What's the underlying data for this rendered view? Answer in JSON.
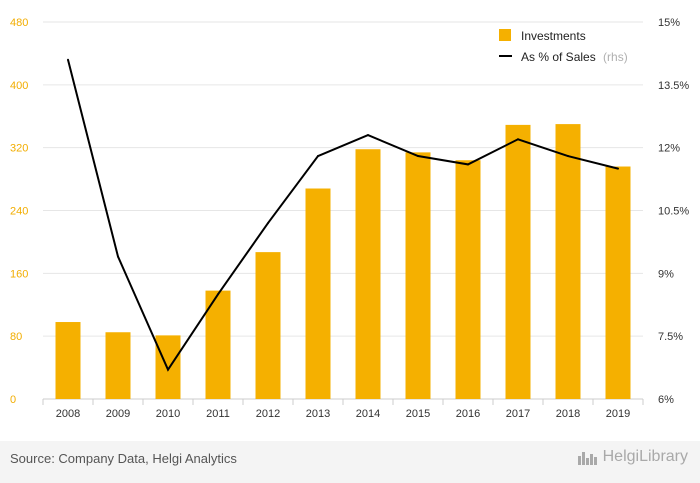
{
  "chart_data": {
    "type": "bar",
    "categories": [
      "2008",
      "2009",
      "2010",
      "2011",
      "2012",
      "2013",
      "2014",
      "2015",
      "2016",
      "2017",
      "2018",
      "2019"
    ],
    "series": [
      {
        "name": "Investments",
        "type": "bar",
        "axis": "left",
        "color": "#f5b000",
        "values": [
          98,
          85,
          81,
          138,
          187,
          268,
          318,
          314,
          304,
          349,
          350,
          296
        ]
      },
      {
        "name": "As % of Sales",
        "name_suffix": "(rhs)",
        "type": "line",
        "axis": "right",
        "color": "#000000",
        "values": [
          14.1,
          9.4,
          6.7,
          8.5,
          10.2,
          11.8,
          12.3,
          11.8,
          11.6,
          12.2,
          11.8,
          11.5
        ]
      }
    ],
    "left_axis": {
      "min": 0,
      "max": 480,
      "ticks": [
        "0",
        "80",
        "160",
        "240",
        "320",
        "400",
        "480"
      ],
      "tick_values": [
        0,
        80,
        160,
        240,
        320,
        400,
        480
      ]
    },
    "right_axis": {
      "min": 6,
      "max": 15,
      "ticks": [
        "6%",
        "7.5%",
        "9%",
        "10.5%",
        "12%",
        "13.5%",
        "15%"
      ],
      "tick_values": [
        6,
        7.5,
        9,
        10.5,
        12,
        13.5,
        15
      ]
    },
    "grid": true,
    "legend": "top-right"
  },
  "footer": {
    "source": "Source: Company Data, Helgi Analytics",
    "brand": "HelgiLibrary",
    "brand_icon": "city-skyline-icon"
  }
}
